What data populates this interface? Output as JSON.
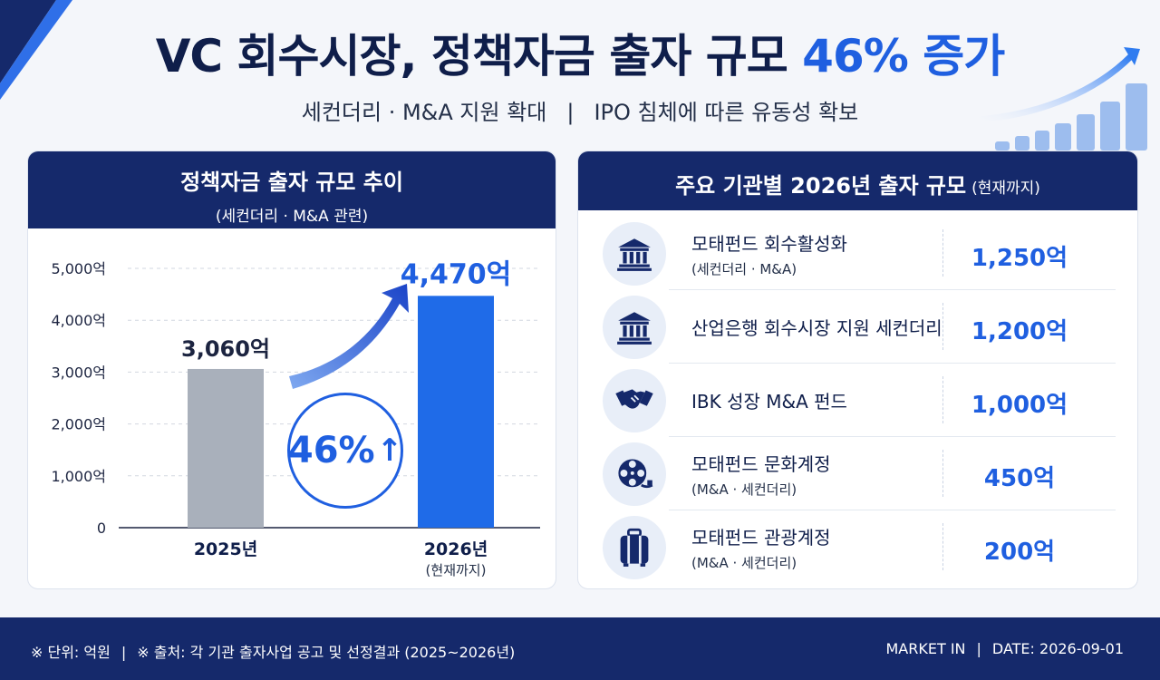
{
  "header": {
    "title_main": "VC 회수시장, 정책자금 출자 규모 ",
    "title_accent": "46% 증가",
    "subtitle_left": "세컨더리 · M&A 지원 확대",
    "subtitle_right": "IPO 침체에 따른 유동성 확보"
  },
  "chart_panel": {
    "title": "정책자금 출자 규모 추이",
    "note": "(세컨더리 · M&A 관련)",
    "growth_badge": "46%",
    "category_notes": [
      "",
      "(현재까지)"
    ]
  },
  "chart_data": {
    "type": "bar",
    "title": "정책자금 출자 규모 추이",
    "categories": [
      "2025년",
      "2026년"
    ],
    "values": [
      3060,
      4470
    ],
    "value_labels": [
      "3,060억",
      "4,470억"
    ],
    "y_ticks": [
      0,
      1000,
      2000,
      3000,
      4000,
      5000
    ],
    "y_tick_labels": [
      "0",
      "1,000억",
      "2,000억",
      "3,000억",
      "4,000억",
      "5,000억"
    ],
    "ylim": [
      0,
      5000
    ],
    "grid": true,
    "colors": [
      "#a9b0bb",
      "#1f6be8"
    ]
  },
  "org_panel": {
    "title": "주요 기관별 2026년 출자 규모",
    "note": "(현재까지)",
    "items": [
      {
        "name": "모태펀드 회수활성화",
        "sub": "(세컨더리 · M&A)",
        "amount": "1,250억",
        "icon": "bank-icon"
      },
      {
        "name": "산업은행 회수시장 지원 세컨더리",
        "sub": "",
        "amount": "1,200억",
        "icon": "bank-icon"
      },
      {
        "name": "IBK 성장 M&A 펀드",
        "sub": "",
        "amount": "1,000억",
        "icon": "handshake-icon"
      },
      {
        "name": "모태펀드 문화계정",
        "sub": "(M&A · 세컨더리)",
        "amount": "450억",
        "icon": "film-reel-icon"
      },
      {
        "name": "모태펀드 관광계정",
        "sub": "(M&A · 세컨더리)",
        "amount": "200억",
        "icon": "suitcase-icon"
      }
    ]
  },
  "footer": {
    "unit": "※ 단위: 억원",
    "source": "※ 출처: 각 기관 출자사업 공고 및 선정결과 (2025~2026년)",
    "publisher": "MARKET IN",
    "date": "DATE: 2026-09-01"
  },
  "colors": {
    "navy": "#15296b",
    "accent": "#1f5fe0",
    "bar_2025": "#a9b0bb",
    "bar_2026": "#1f6be8"
  }
}
